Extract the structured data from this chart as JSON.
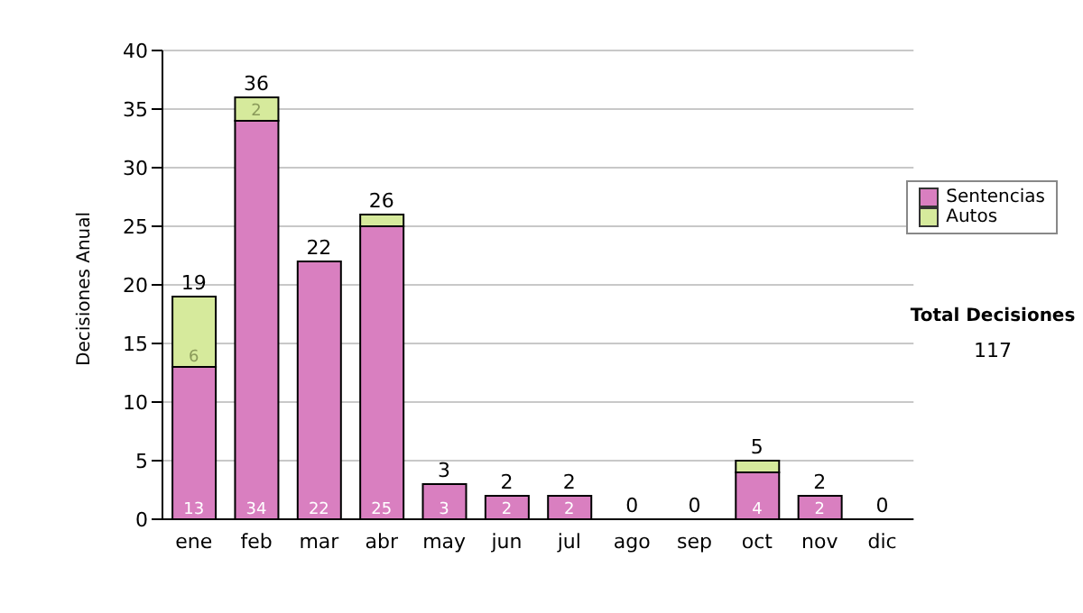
{
  "chart_data": {
    "type": "bar",
    "ylabel": "Decisiones Anual",
    "categories": [
      "ene",
      "feb",
      "mar",
      "abr",
      "may",
      "jun",
      "jul",
      "ago",
      "sep",
      "oct",
      "nov",
      "dic"
    ],
    "series": [
      {
        "name": "Sentencias",
        "color": "#d97fc0",
        "values": [
          13,
          34,
          22,
          25,
          3,
          2,
          2,
          0,
          0,
          4,
          2,
          0
        ],
        "value_labels": [
          "13",
          "34",
          "22",
          "25",
          "3",
          "2",
          "2",
          null,
          null,
          "4",
          "2",
          null
        ]
      },
      {
        "name": "Autos",
        "color": "#d6ea9c",
        "values": [
          6,
          2,
          0,
          1,
          0,
          0,
          0,
          0,
          0,
          1,
          0,
          0
        ],
        "value_labels": [
          "6",
          "2",
          null,
          null,
          null,
          null,
          null,
          null,
          null,
          null,
          null,
          null
        ]
      }
    ],
    "stacked": true,
    "totals": [
      "19",
      "36",
      "22",
      "26",
      "3",
      "2",
      "2",
      "0",
      "0",
      "5",
      "2",
      "0"
    ],
    "ylim": [
      0,
      40
    ],
    "yticks": [
      0,
      5,
      10,
      15,
      20,
      25,
      30,
      35,
      40
    ],
    "grid": "y",
    "legend": "right",
    "annotations": [
      "Total Decisiones",
      "117"
    ]
  }
}
